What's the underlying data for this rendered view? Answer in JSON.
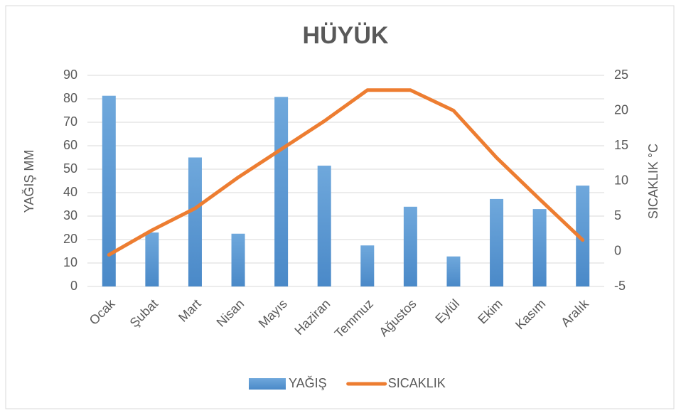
{
  "chart_data": {
    "type": "bar_line",
    "title": "HÜYÜK",
    "y_label": "YAĞIŞ MM",
    "y2_label": "SICAKLIK °C",
    "categories": [
      "Ocak",
      "Şubat",
      "Mart",
      "Nisan",
      "Mayıs",
      "Haziran",
      "Temmuz",
      "Ağustos",
      "Eylül",
      "Ekim",
      "Kasım",
      "Aralık"
    ],
    "series": [
      {
        "name": "YAĞIŞ",
        "type": "bar",
        "color": "#5b9bd5",
        "values": [
          81.3,
          23,
          55,
          22.5,
          80.8,
          51.5,
          17.5,
          34,
          12.8,
          37.3,
          33,
          43
        ]
      },
      {
        "name": "SICAKLIK",
        "type": "line",
        "axis": "y2",
        "color": "#ed7d31",
        "values": [
          -0.5,
          3.0,
          6.1,
          10.5,
          14.5,
          18.5,
          22.9,
          22.9,
          20.0,
          13.3,
          7.4,
          1.6
        ]
      }
    ],
    "ylim": [
      0,
      90
    ],
    "yticks": [
      0,
      10,
      20,
      30,
      40,
      50,
      60,
      70,
      80,
      90
    ],
    "y2lim": [
      -5,
      25
    ],
    "y2ticks": [
      -5,
      0,
      5,
      10,
      15,
      20,
      25
    ],
    "grid": true,
    "legend": "bottom"
  }
}
